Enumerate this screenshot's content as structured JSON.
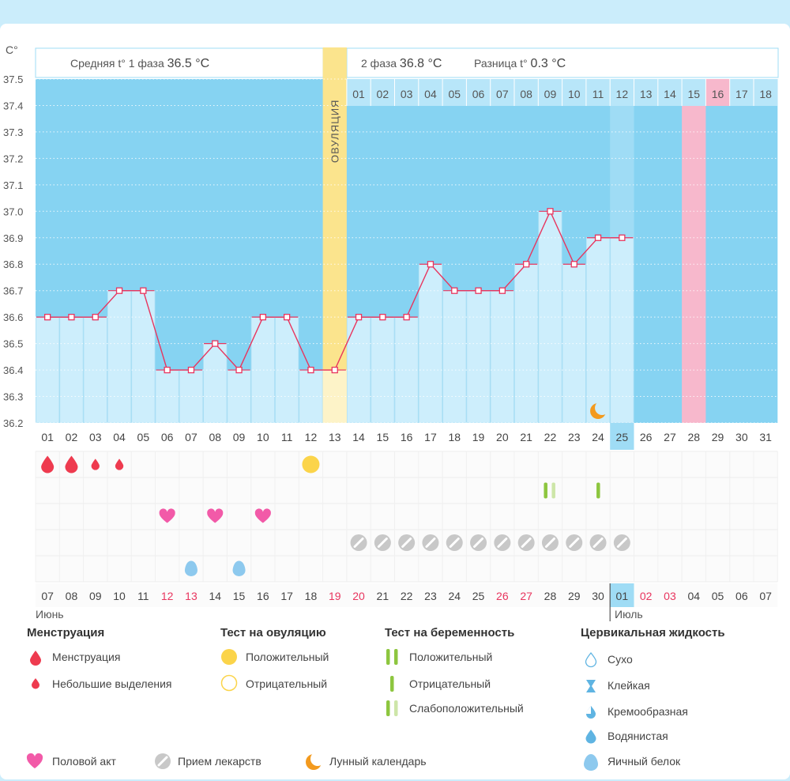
{
  "header": {
    "phase1_label": "Средняя t° 1 фаза",
    "phase1_value": "36.5 °C",
    "phase2_label": "2 фаза",
    "phase2_value": "36.8 °C",
    "diff_label": "Разница t°",
    "diff_value": "0.3 °C",
    "unit": "С°",
    "ovulation_label": "ОВУЛЯЦИЯ"
  },
  "chart_data": {
    "type": "line",
    "title": "",
    "ylabel": "С°",
    "ylim": [
      36.2,
      37.5
    ],
    "y_ticks": [
      "37.5",
      "37.4",
      "37.3",
      "37.2",
      "37.1",
      "37.0",
      "36.9",
      "36.8",
      "36.7",
      "36.6",
      "36.5",
      "36.4",
      "36.3",
      "36.2"
    ],
    "cycle_days": [
      "01",
      "02",
      "03",
      "04",
      "05",
      "06",
      "07",
      "08",
      "09",
      "10",
      "11",
      "12",
      "13",
      "14",
      "15",
      "16",
      "17",
      "18",
      "19",
      "20",
      "21",
      "22",
      "23",
      "24",
      "25",
      "26",
      "27",
      "28",
      "29",
      "30",
      "31"
    ],
    "temperatures": [
      36.6,
      36.6,
      36.6,
      36.7,
      36.7,
      36.4,
      36.4,
      36.5,
      36.4,
      36.6,
      36.6,
      36.4,
      36.4,
      36.6,
      36.6,
      36.6,
      36.8,
      36.7,
      36.7,
      36.7,
      36.8,
      37.0,
      36.8,
      36.9,
      36.9,
      null,
      null,
      null,
      null,
      null,
      null
    ],
    "ovulation_day": 13,
    "current_day": 25,
    "highlighted_day": 28,
    "moon_day": 24,
    "phase2_days": [
      "01",
      "02",
      "03",
      "04",
      "05",
      "06",
      "07",
      "08",
      "09",
      "10",
      "11",
      "12",
      "13",
      "14",
      "15",
      "16",
      "17",
      "18"
    ],
    "phase2_highlight_index": 15,
    "calendar_dates": [
      "07",
      "08",
      "09",
      "10",
      "11",
      "12",
      "13",
      "14",
      "15",
      "16",
      "17",
      "18",
      "19",
      "20",
      "21",
      "22",
      "23",
      "24",
      "25",
      "26",
      "27",
      "28",
      "29",
      "30",
      "01",
      "02",
      "03",
      "04",
      "05",
      "06",
      "07"
    ],
    "calendar_red": [
      5,
      6,
      12,
      13,
      19,
      20,
      25,
      26
    ],
    "months": [
      "Июнь",
      "Июль"
    ],
    "menstruation": {
      "1": "heavy",
      "2": "heavy",
      "3": "light",
      "4": "light"
    },
    "ovulation_test_positive": [
      12
    ],
    "pregnancy_test": {
      "22": "weak",
      "24": "negative"
    },
    "intercourse": [
      6,
      8,
      10
    ],
    "medication": [
      14,
      15,
      16,
      17,
      18,
      19,
      20,
      21,
      22,
      23,
      24,
      25
    ],
    "cervical_egg_white": [
      7,
      9
    ],
    "colors": {
      "plot_bg": "#86d3f2",
      "bar_fill": "#cdeefc",
      "line": "#e8355e",
      "ovulation": "#fbe48d",
      "highlight": "#f7b8cc",
      "current": "#9fdcf5",
      "red_text": "#e8355e",
      "drop": "#ee3b4f",
      "heart": "#f25aa8",
      "pill": "#c8c8c8",
      "green": "#8dc63f",
      "green_light": "#cde6a8",
      "moon": "#f39a1e",
      "sun": "#fbd44a",
      "egg": "#8dc9ee"
    }
  },
  "legend": {
    "menstruation_title": "Менструация",
    "menstruation_heavy": "Менструация",
    "menstruation_light": "Небольшие выделения",
    "ovulation_title": "Тест на овуляцию",
    "ovulation_positive": "Положительный",
    "ovulation_negative": "Отрицательный",
    "pregnancy_title": "Тест на беременность",
    "pregnancy_positive": "Положительный",
    "pregnancy_negative": "Отрицательный",
    "pregnancy_weak": "Слабоположительный",
    "cervical_title": "Цервикальная жидкость",
    "cervical_dry": "Сухо",
    "cervical_sticky": "Клейкая",
    "cervical_creamy": "Кремообразная",
    "cervical_watery": "Водянистая",
    "cervical_eggwhite": "Яичный белок",
    "intercourse": "Половой акт",
    "medication": "Прием лекарств",
    "lunar": "Лунный календарь"
  }
}
